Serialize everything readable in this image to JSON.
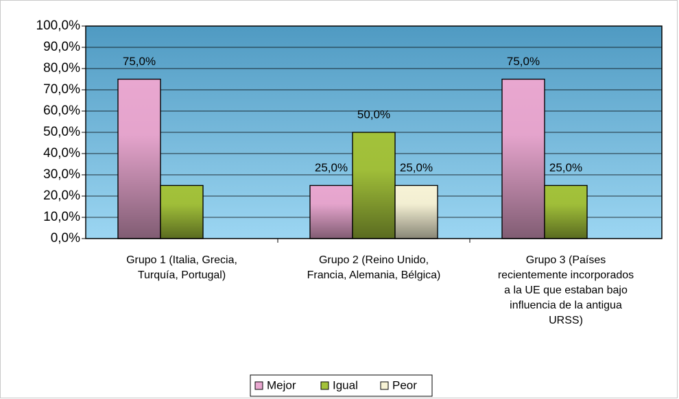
{
  "chart_data": {
    "type": "bar",
    "categories": [
      "Grupo 1 (Italia, Grecia,\nTurquía, Portugal)",
      "Grupo 2 (Reino Unido,\nFrancia, Alemania, Bélgica)",
      "Grupo 3 (Países\nrecientemente incorporados\na la UE que estaban bajo\ninfluencia de la antigua\nURSS)"
    ],
    "series": [
      {
        "name": "Mejor",
        "color": "#e9a7d0",
        "values": [
          75,
          25,
          75
        ],
        "value_labels": [
          "75,0%",
          "25,0%",
          "75,0%"
        ]
      },
      {
        "name": "Igual",
        "color": "#a3c23a",
        "values": [
          25,
          50,
          25
        ],
        "value_labels": [
          null,
          "50,0%",
          "25,0%"
        ]
      },
      {
        "name": "Peor",
        "color": "#f7f3d6",
        "values": [
          0,
          25,
          0
        ],
        "value_labels": [
          null,
          "25,0%",
          null
        ]
      }
    ],
    "ylim": [
      0,
      100
    ],
    "yticks": [
      {
        "value": 0,
        "label": "0,0%"
      },
      {
        "value": 10,
        "label": "10,0%"
      },
      {
        "value": 20,
        "label": "20,0%"
      },
      {
        "value": 30,
        "label": "30,0%"
      },
      {
        "value": 40,
        "label": "40,0%"
      },
      {
        "value": 50,
        "label": "50,0%"
      },
      {
        "value": 60,
        "label": "60,0%"
      },
      {
        "value": 70,
        "label": "70,0%"
      },
      {
        "value": 80,
        "label": "80,0%"
      },
      {
        "value": 90,
        "label": "90,0%"
      },
      {
        "value": 100,
        "label": "100,0%"
      }
    ],
    "grid": true,
    "legend": "bottom"
  }
}
